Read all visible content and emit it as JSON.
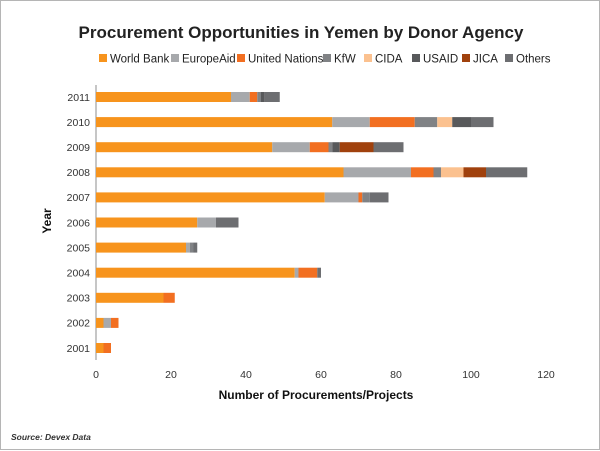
{
  "chart_data": {
    "type": "bar",
    "orientation": "horizontal",
    "stacked": true,
    "title": "Procurement Opportunities in Yemen by Donor Agency",
    "xlabel": "Number of Procurements/Projects",
    "ylabel": "Year",
    "xlim": [
      0,
      120
    ],
    "xticks": [
      0,
      20,
      40,
      60,
      80,
      100,
      120
    ],
    "grid": false,
    "legend_position": "top",
    "categories": [
      "2011",
      "2010",
      "2009",
      "2008",
      "2007",
      "2006",
      "2005",
      "2004",
      "2003",
      "2002",
      "2001"
    ],
    "series": [
      {
        "name": "World Bank",
        "color": "#f7941d",
        "values": [
          36,
          63,
          47,
          66,
          61,
          27,
          24,
          53,
          18,
          2,
          2
        ]
      },
      {
        "name": "EuropeAid",
        "color": "#a7a9ac",
        "values": [
          5,
          10,
          10,
          18,
          9,
          5,
          1,
          1,
          0,
          2,
          0
        ]
      },
      {
        "name": "United Nations",
        "color": "#f26f21",
        "values": [
          2,
          12,
          5,
          6,
          1,
          0,
          0,
          5,
          3,
          2,
          2
        ]
      },
      {
        "name": "KfW",
        "color": "#808285",
        "values": [
          1,
          6,
          1,
          2,
          2,
          0,
          1,
          0,
          0,
          0,
          0
        ]
      },
      {
        "name": "CIDA",
        "color": "#fbc18f",
        "values": [
          0,
          4,
          0,
          6,
          0,
          0,
          0,
          0,
          0,
          0,
          0
        ]
      },
      {
        "name": "USAID",
        "color": "#58595b",
        "values": [
          1,
          5,
          2,
          0,
          0,
          0,
          0,
          0,
          0,
          0,
          0
        ]
      },
      {
        "name": "JICA",
        "color": "#a0410d",
        "values": [
          0,
          0,
          9,
          6,
          0,
          0,
          0,
          0,
          0,
          0,
          0
        ]
      },
      {
        "name": "Others",
        "color": "#6d6e71",
        "values": [
          4,
          6,
          8,
          11,
          5,
          6,
          1,
          1,
          0,
          0,
          0
        ]
      }
    ],
    "source": "Source: Devex Data"
  }
}
